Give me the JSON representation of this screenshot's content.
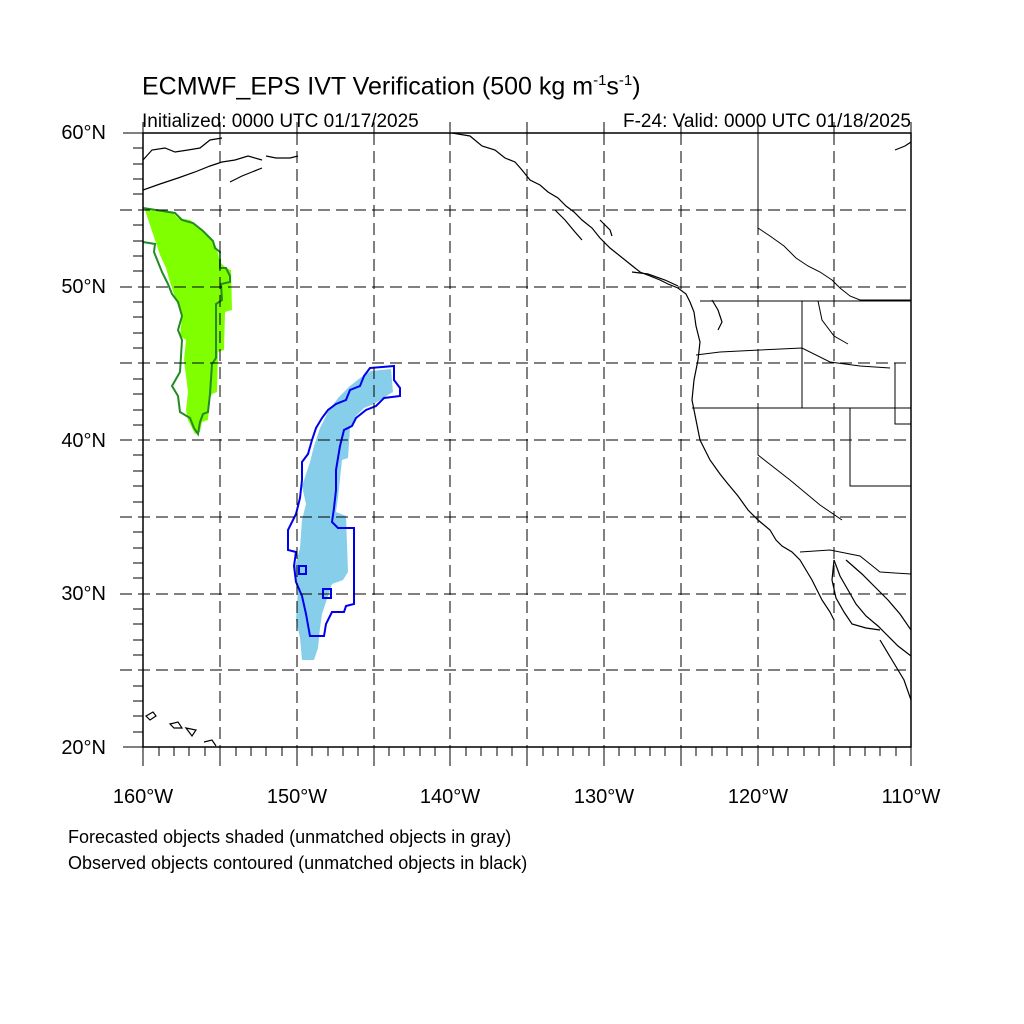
{
  "title_parts": {
    "main": "ECMWF_EPS IVT Verification (500 kg m",
    "exp1": "-1",
    "mid": "s",
    "exp2": "-1",
    "end": ")"
  },
  "initialized": "Initialized: 0000 UTC 01/17/2025",
  "valid": "F-24: Valid: 0000 UTC 01/18/2025",
  "lat_labels": [
    "60°N",
    "50°N",
    "40°N",
    "30°N",
    "20°N"
  ],
  "lon_labels": [
    "160°W",
    "150°W",
    "140°W",
    "130°W",
    "120°W",
    "110°W"
  ],
  "notes": [
    "Forecasted objects shaded (unmatched objects in gray)",
    "Observed objects contoured (unmatched objects in black)"
  ],
  "map_extent": {
    "lon_min": -160,
    "lon_max": -110,
    "lat_min": 20,
    "lat_max": 60
  },
  "colors": {
    "forecast_object_1": "#7fff00",
    "observed_object_1": "#228b22",
    "forecast_object_2": "#87ceeb",
    "observed_object_2": "#0000ee"
  }
}
